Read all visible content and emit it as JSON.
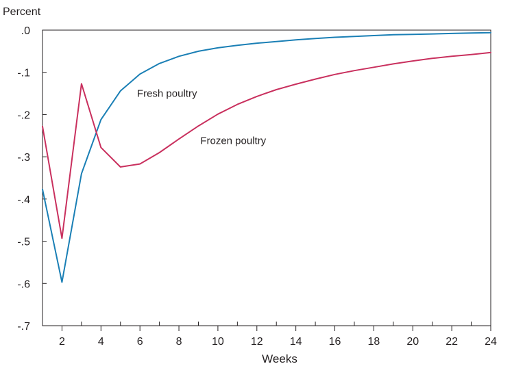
{
  "chart_data": {
    "type": "line",
    "ylabel": "Percent",
    "xlabel": "Weeks",
    "xlim": [
      1,
      24
    ],
    "ylim": [
      -0.7,
      0.0
    ],
    "x_ticks": [
      2,
      4,
      6,
      8,
      10,
      12,
      14,
      16,
      18,
      20,
      22,
      24
    ],
    "x_tick_labels": [
      "2",
      "4",
      "6",
      "8",
      "10",
      "12",
      "14",
      "16",
      "18",
      "20",
      "22",
      "24"
    ],
    "y_ticks": [
      0.0,
      -0.1,
      -0.2,
      -0.3,
      -0.4,
      -0.5,
      -0.6,
      -0.7
    ],
    "y_tick_labels": [
      ".0",
      "-.1",
      "-.2",
      "-.3",
      "-.4",
      "-.5",
      "-.6",
      "-.7"
    ],
    "grid": false,
    "x": [
      1,
      2,
      3,
      4,
      5,
      6,
      7,
      8,
      9,
      10,
      11,
      12,
      13,
      14,
      15,
      16,
      17,
      18,
      19,
      20,
      21,
      22,
      23,
      24
    ],
    "series": [
      {
        "name": "Fresh poultry",
        "color": "#1a7fb5",
        "values": [
          -0.377,
          -0.597,
          -0.34,
          -0.212,
          -0.144,
          -0.104,
          -0.079,
          -0.062,
          -0.05,
          -0.042,
          -0.036,
          -0.031,
          -0.027,
          -0.023,
          -0.02,
          -0.017,
          -0.015,
          -0.013,
          -0.011,
          -0.01,
          -0.009,
          -0.008,
          -0.007,
          -0.006
        ]
      },
      {
        "name": "Frozen poultry",
        "color": "#c9305e",
        "values": [
          -0.228,
          -0.493,
          -0.127,
          -0.278,
          -0.324,
          -0.317,
          -0.29,
          -0.258,
          -0.227,
          -0.199,
          -0.176,
          -0.157,
          -0.141,
          -0.128,
          -0.116,
          -0.105,
          -0.096,
          -0.088,
          -0.08,
          -0.073,
          -0.067,
          -0.062,
          -0.058,
          -0.053
        ]
      }
    ]
  }
}
